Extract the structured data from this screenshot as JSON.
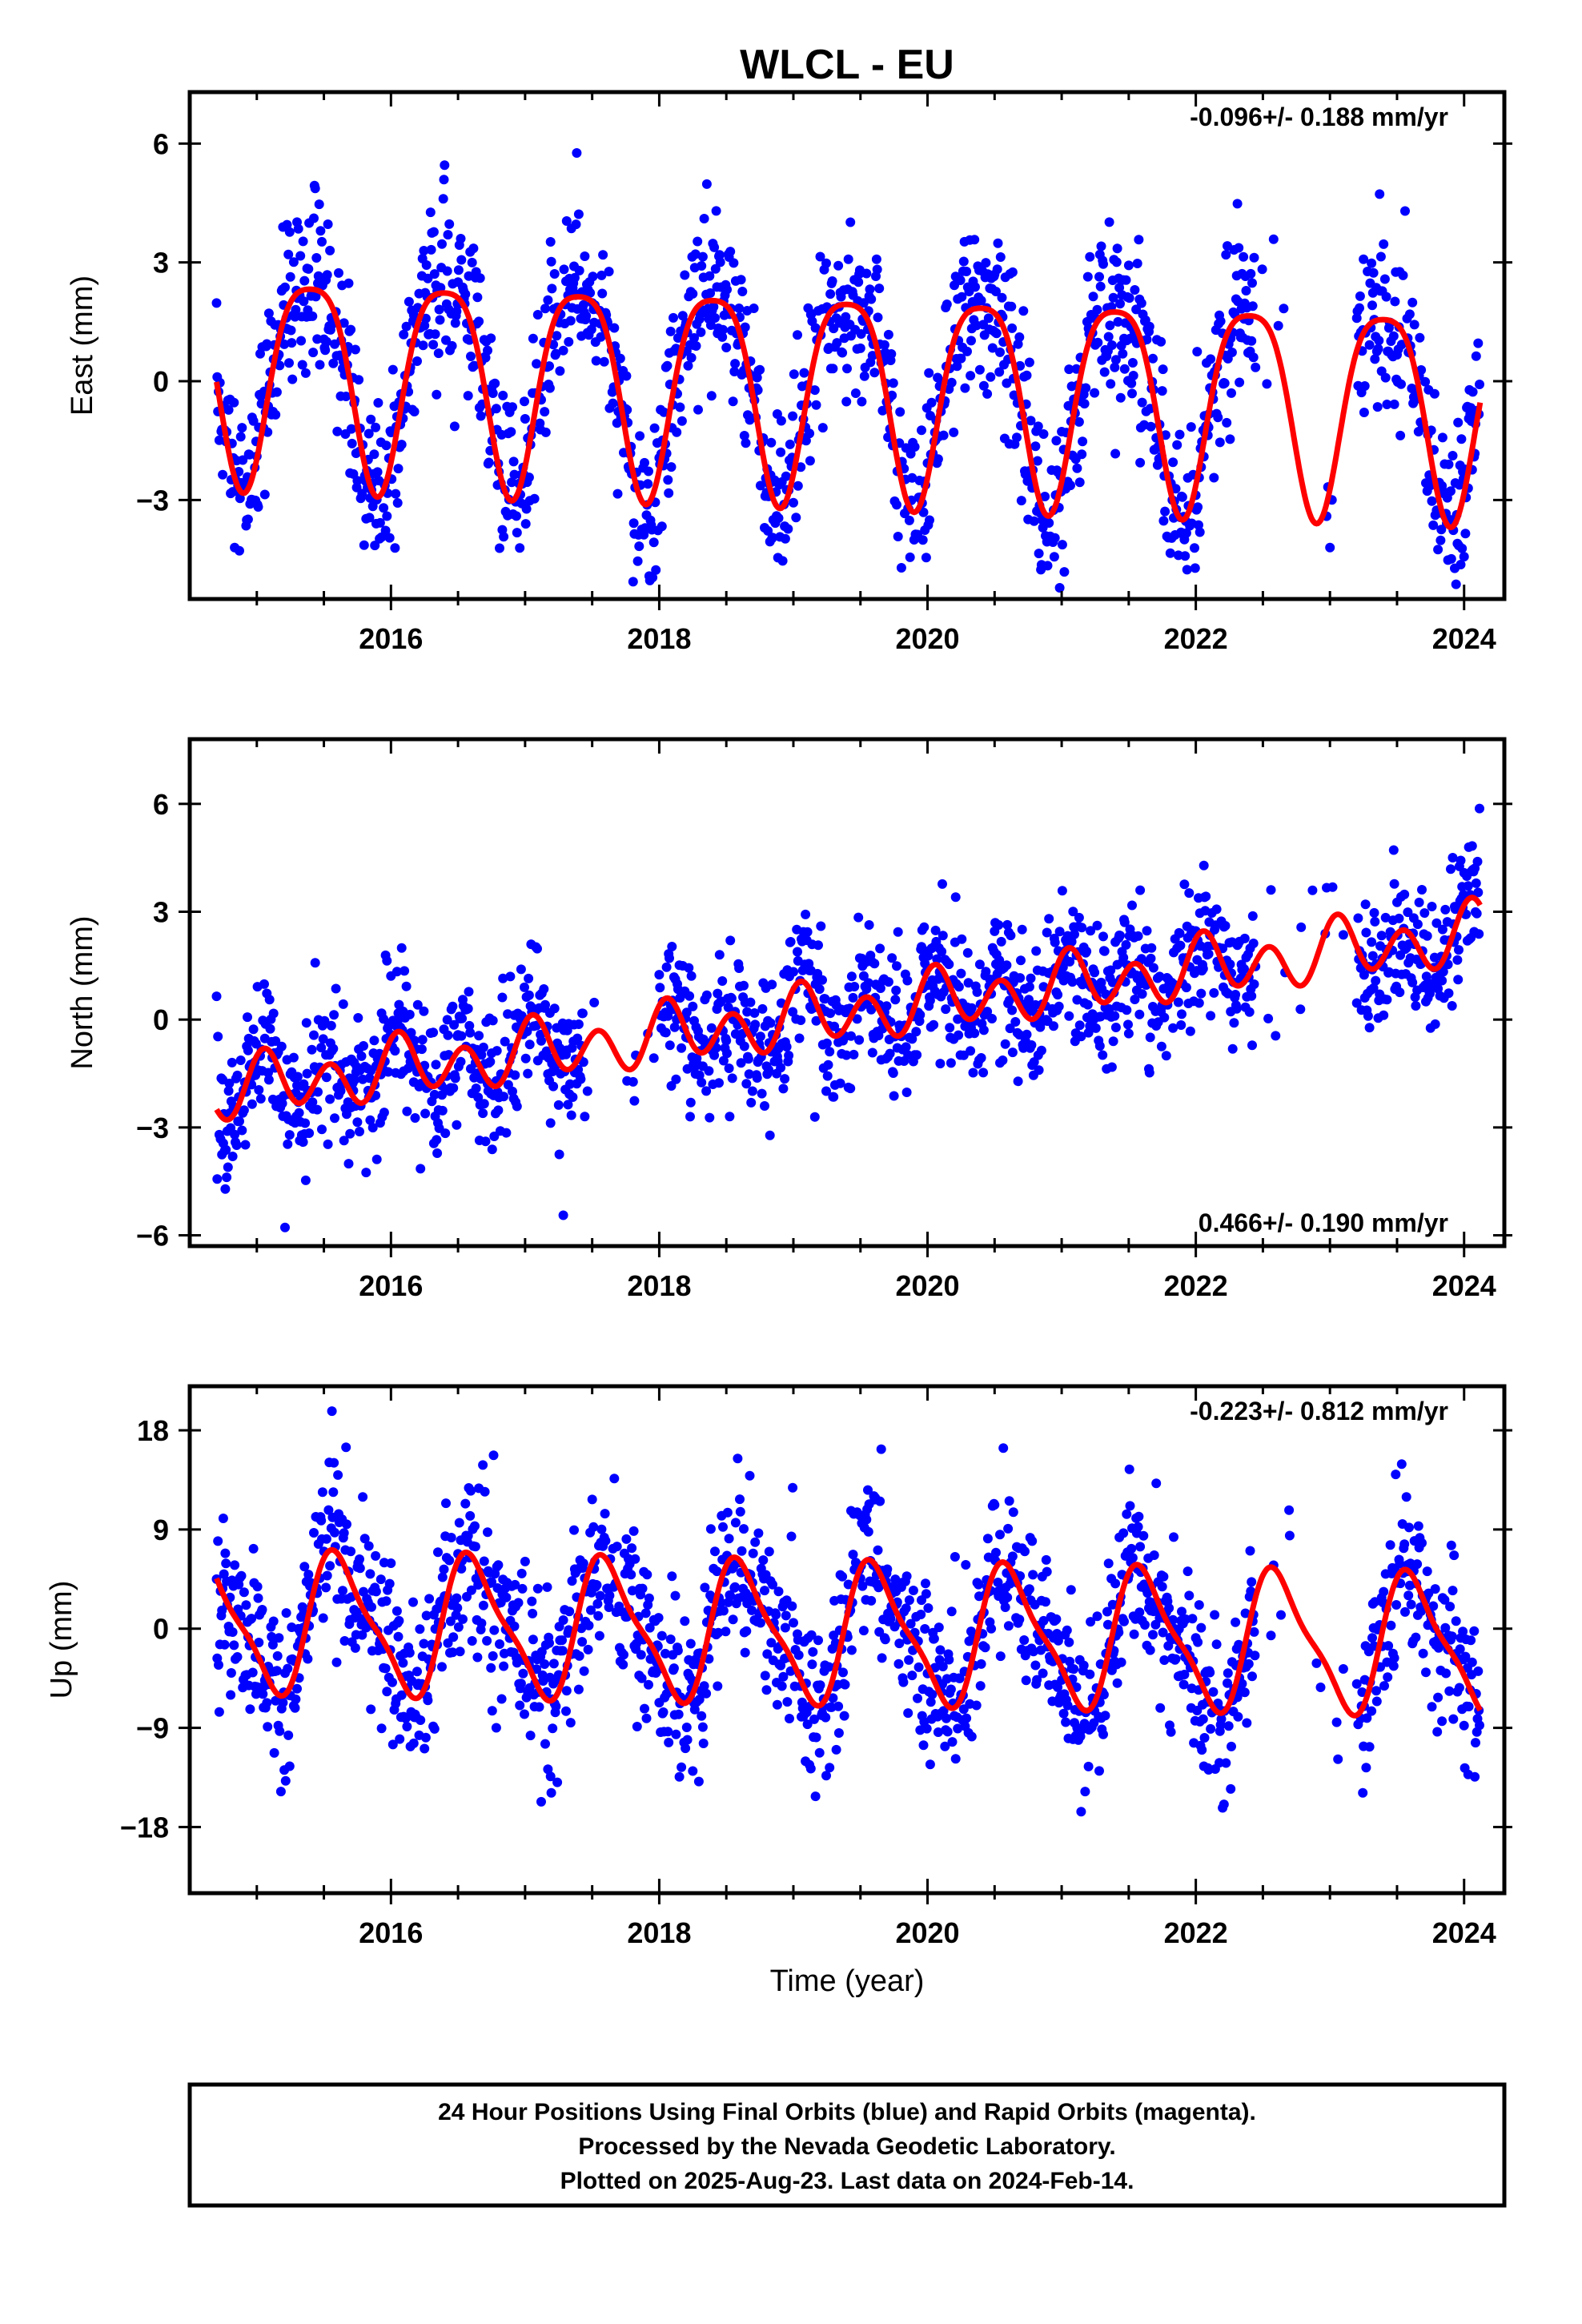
{
  "title": "WLCL - EU",
  "xlabel": "Time (year)",
  "colors": {
    "points": "#0000ff",
    "fit": "#ff0000",
    "frame": "#000000"
  },
  "footer": {
    "lines": [
      "24 Hour Positions Using Final Orbits (blue) and Rapid Orbits (magenta).",
      "Processed by the Nevada Geodetic Laboratory.",
      "Plotted on 2025-Aug-23. Last data on 2024-Feb-14."
    ]
  },
  "chart_data": [
    {
      "type": "scatter",
      "component": "east",
      "ylabel": "East (mm)",
      "rate_label": "-0.096+/- 0.188 mm/yr",
      "rate_position": "top-right",
      "xlim": [
        2014.5,
        2024.3
      ],
      "ylim": [
        -5.5,
        7.3
      ],
      "xticks": [
        2016,
        2018,
        2020,
        2022,
        2024
      ],
      "yticks": [
        -3,
        0,
        3,
        6
      ],
      "ytick_labels": [
        "−3",
        "0",
        "3",
        "6"
      ],
      "data_range": [
        2014.7,
        2024.12
      ],
      "gaps": [
        [
          2022.45,
          2023.2
        ]
      ],
      "fit": {
        "offset": 0.34,
        "trend_mm_per_yr": -0.096,
        "annual_amp": 2.6,
        "annual_peak_year": 0.4,
        "semiannual_amp": 0.55,
        "semiannual_peak_year": 0.15
      },
      "scatter_sigma": 1.1,
      "series": [
        {
          "name": "Final Orbits",
          "marker": "dot",
          "color": "#0000ff"
        },
        {
          "name": "fit",
          "marker": "line",
          "color": "#ff0000"
        }
      ]
    },
    {
      "type": "scatter",
      "component": "north",
      "ylabel": "North (mm)",
      "rate_label": "0.466+/- 0.190 mm/yr",
      "rate_position": "bottom-right",
      "xlim": [
        2014.5,
        2024.3
      ],
      "ylim": [
        -6.3,
        7.8
      ],
      "xticks": [
        2016,
        2018,
        2020,
        2022,
        2024
      ],
      "yticks": [
        -6,
        -3,
        0,
        3,
        6
      ],
      "ytick_labels": [
        "−6",
        "−3",
        "0",
        "3",
        "6"
      ],
      "data_range": [
        2014.7,
        2024.12
      ],
      "gaps": [
        [
          2017.45,
          2018.0
        ],
        [
          2022.45,
          2023.2
        ]
      ],
      "fit": {
        "offset": -2.0,
        "trend_mm_per_yr": 0.466,
        "annual_amp": 0.35,
        "annual_peak_year": 0.1,
        "semiannual_amp": 0.7,
        "semiannual_peak_year": 0.05
      },
      "scatter_sigma": 1.0,
      "series": [
        {
          "name": "Final Orbits",
          "marker": "dot",
          "color": "#0000ff"
        },
        {
          "name": "fit",
          "marker": "line",
          "color": "#ff0000"
        }
      ]
    },
    {
      "type": "scatter",
      "component": "up",
      "ylabel": "Up (mm)",
      "rate_label": "-0.223+/- 0.812 mm/yr",
      "rate_position": "top-right",
      "xlim": [
        2014.5,
        2024.3
      ],
      "ylim": [
        -24,
        22
      ],
      "xticks": [
        2016,
        2018,
        2020,
        2022,
        2024
      ],
      "yticks": [
        -18,
        -9,
        0,
        9,
        18
      ],
      "ytick_labels": [
        "−18",
        "−9",
        "0",
        "9",
        "18"
      ],
      "data_range": [
        2014.7,
        2024.12
      ],
      "gaps": [
        [
          2022.45,
          2023.2
        ]
      ],
      "fit": {
        "offset": 0.6,
        "trend_mm_per_yr": -0.223,
        "annual_amp": 6.0,
        "annual_peak_year": 0.62,
        "semiannual_amp": 1.6,
        "semiannual_peak_year": 0.5
      },
      "scatter_sigma": 4.0,
      "series": [
        {
          "name": "Final Orbits",
          "marker": "dot",
          "color": "#0000ff"
        },
        {
          "name": "fit",
          "marker": "line",
          "color": "#ff0000"
        }
      ]
    }
  ]
}
